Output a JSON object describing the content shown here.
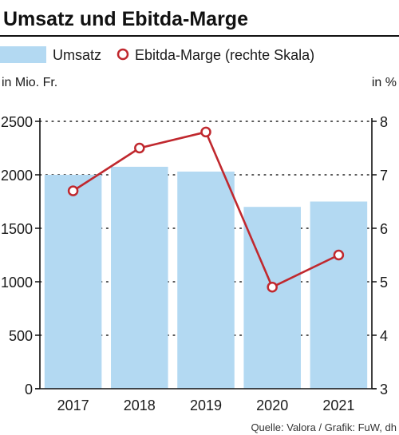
{
  "chart_data": {
    "type": "bar",
    "title": "Umsatz und Ebitda-Marge",
    "categories": [
      "2017",
      "2018",
      "2019",
      "2020",
      "2021"
    ],
    "series": [
      {
        "name": "Umsatz",
        "type": "bar",
        "axis": "left",
        "values": [
          2000,
          2075,
          2030,
          1700,
          1750
        ]
      },
      {
        "name": "Ebitda-Marge (rechte Skala)",
        "type": "line",
        "axis": "right",
        "values": [
          6.7,
          7.5,
          7.8,
          4.9,
          5.5
        ]
      }
    ],
    "y_left": {
      "unit_label": "in Mio. Fr.",
      "ylim": [
        0,
        2500
      ],
      "ticks": [
        "0",
        "500",
        "1000",
        "1500",
        "2000",
        "2500"
      ]
    },
    "y_right": {
      "unit_label": "in %",
      "ylim": [
        3,
        8
      ],
      "ticks": [
        "3",
        "4",
        "5",
        "6",
        "7",
        "8"
      ]
    },
    "grid": "dotted horizontal",
    "legend_position": "top",
    "source": "Quelle: Valora / Grafik: FuW, dh"
  },
  "colors": {
    "bar": "#b3d9f2",
    "line": "#c0282e",
    "marker_fill": "#ffffff",
    "grid": "#222222",
    "axis": "#111111"
  }
}
